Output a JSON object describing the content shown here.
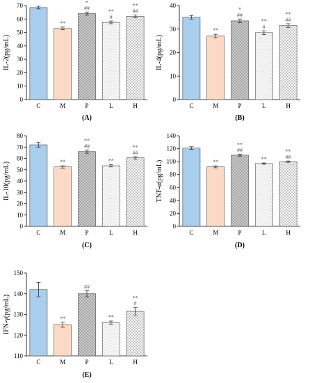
{
  "colors": {
    "C": "#a9cfee",
    "M": "#fbd9c4",
    "P": "#a0a0a0",
    "L": "#ffffff",
    "H": "#ffffff"
  },
  "chart_data": [
    {
      "type": "bar",
      "panel": "(A)",
      "ylabel": "IL-2(pg/mL)",
      "categories": [
        "C",
        "M",
        "P",
        "L",
        "H"
      ],
      "values": [
        68.5,
        53,
        64,
        57.5,
        62
      ],
      "errors": [
        1.0,
        1.0,
        1.2,
        1.0,
        1.0
      ],
      "annotations": [
        [],
        [
          "**"
        ],
        [
          "*",
          "##"
        ],
        [
          "**",
          "#"
        ],
        [
          "**",
          "##"
        ]
      ],
      "ylim": [
        0,
        70
      ],
      "yticks": [
        0,
        10,
        20,
        30,
        40,
        50,
        60,
        70
      ]
    },
    {
      "type": "bar",
      "panel": "(B)",
      "ylabel": "IL-4(pg/mL)",
      "categories": [
        "C",
        "M",
        "P",
        "L",
        "H"
      ],
      "values": [
        35,
        27,
        33.5,
        28.5,
        31.5
      ],
      "errors": [
        0.8,
        0.8,
        0.8,
        0.8,
        0.8
      ],
      "annotations": [
        [],
        [
          "**"
        ],
        [
          "*",
          "##"
        ],
        [
          "**",
          "#"
        ],
        [
          "**",
          "##"
        ]
      ],
      "ylim": [
        0,
        40
      ],
      "yticks": [
        0,
        10,
        20,
        30,
        40
      ]
    },
    {
      "type": "bar",
      "panel": "(C)",
      "ylabel": "IL-10(pg/mL)",
      "categories": [
        "C",
        "M",
        "P",
        "L",
        "H"
      ],
      "values": [
        72,
        52.5,
        66,
        53.5,
        60.5
      ],
      "errors": [
        2.0,
        1.0,
        1.5,
        1.0,
        1.0
      ],
      "annotations": [
        [],
        [
          "**"
        ],
        [
          "**",
          "##"
        ],
        [
          "**"
        ],
        [
          "**",
          "##"
        ]
      ],
      "ylim": [
        0,
        80
      ],
      "yticks": [
        0,
        10,
        20,
        30,
        40,
        50,
        60,
        70,
        80
      ]
    },
    {
      "type": "bar",
      "panel": "(D)",
      "ylabel": "TNF-α(pg/mL)",
      "categories": [
        "C",
        "M",
        "P",
        "L",
        "H"
      ],
      "values": [
        121,
        92,
        110,
        97,
        100
      ],
      "errors": [
        2.0,
        1.5,
        1.5,
        1.0,
        1.0
      ],
      "annotations": [
        [],
        [
          "**"
        ],
        [
          "**",
          "##"
        ],
        [
          "**"
        ],
        [
          "**",
          "##"
        ]
      ],
      "ylim": [
        0,
        140
      ],
      "yticks": [
        0,
        20,
        40,
        60,
        80,
        100,
        120,
        140
      ]
    },
    {
      "type": "bar",
      "panel": "(E)",
      "ylabel": "IFN-γ(pg/mL)",
      "categories": [
        "C",
        "M",
        "P",
        "L",
        "H"
      ],
      "values": [
        142,
        125,
        140,
        126,
        131.5
      ],
      "errors": [
        3.5,
        1.2,
        1.5,
        0.8,
        1.8
      ],
      "annotations": [
        [],
        [
          "**"
        ],
        [
          "##"
        ],
        [
          "**"
        ],
        [
          "**",
          "#"
        ]
      ],
      "ylim": [
        110,
        150
      ],
      "yticks": [
        110,
        120,
        130,
        140,
        150
      ]
    }
  ]
}
